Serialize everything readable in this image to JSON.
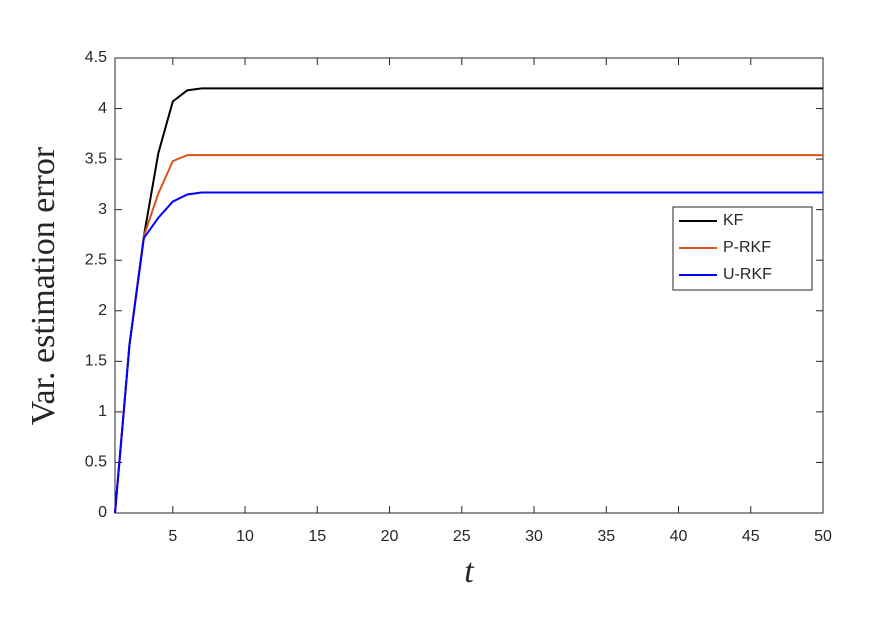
{
  "chart_data": {
    "type": "line",
    "xlabel": "t",
    "ylabel": "Var. estimation error",
    "x": [
      1,
      2,
      3,
      4,
      5,
      6,
      7,
      8,
      9,
      10,
      11,
      12,
      13,
      14,
      15,
      16,
      17,
      18,
      19,
      20,
      21,
      22,
      23,
      24,
      25,
      26,
      27,
      28,
      29,
      30,
      31,
      32,
      33,
      34,
      35,
      36,
      37,
      38,
      39,
      40,
      41,
      42,
      43,
      44,
      45,
      46,
      47,
      48,
      49,
      50
    ],
    "series": [
      {
        "name": "KF",
        "color": "#000000",
        "values": [
          0,
          1.66,
          2.74,
          3.56,
          4.07,
          4.18,
          4.2,
          4.2,
          4.2,
          4.2,
          4.2,
          4.2,
          4.2,
          4.2,
          4.2,
          4.2,
          4.2,
          4.2,
          4.2,
          4.2,
          4.2,
          4.2,
          4.2,
          4.2,
          4.2,
          4.2,
          4.2,
          4.2,
          4.2,
          4.2,
          4.2,
          4.2,
          4.2,
          4.2,
          4.2,
          4.2,
          4.2,
          4.2,
          4.2,
          4.2,
          4.2,
          4.2,
          4.2,
          4.2,
          4.2,
          4.2,
          4.2,
          4.2,
          4.2,
          4.2
        ]
      },
      {
        "name": "P-RKF",
        "color": "#d95319",
        "values": [
          0,
          1.66,
          2.74,
          3.16,
          3.48,
          3.54,
          3.54,
          3.54,
          3.54,
          3.54,
          3.54,
          3.54,
          3.54,
          3.54,
          3.54,
          3.54,
          3.54,
          3.54,
          3.54,
          3.54,
          3.54,
          3.54,
          3.54,
          3.54,
          3.54,
          3.54,
          3.54,
          3.54,
          3.54,
          3.54,
          3.54,
          3.54,
          3.54,
          3.54,
          3.54,
          3.54,
          3.54,
          3.54,
          3.54,
          3.54,
          3.54,
          3.54,
          3.54,
          3.54,
          3.54,
          3.54,
          3.54,
          3.54,
          3.54,
          3.54
        ]
      },
      {
        "name": "U-RKF",
        "color": "#0000ff",
        "values": [
          0,
          1.66,
          2.72,
          2.92,
          3.08,
          3.15,
          3.17,
          3.17,
          3.17,
          3.17,
          3.17,
          3.17,
          3.17,
          3.17,
          3.17,
          3.17,
          3.17,
          3.17,
          3.17,
          3.17,
          3.17,
          3.17,
          3.17,
          3.17,
          3.17,
          3.17,
          3.17,
          3.17,
          3.17,
          3.17,
          3.17,
          3.17,
          3.17,
          3.17,
          3.17,
          3.17,
          3.17,
          3.17,
          3.17,
          3.17,
          3.17,
          3.17,
          3.17,
          3.17,
          3.17,
          3.17,
          3.17,
          3.17,
          3.17,
          3.17
        ]
      }
    ],
    "xlim": [
      1,
      50
    ],
    "xticks": [
      5,
      10,
      15,
      20,
      25,
      30,
      35,
      40,
      45,
      50
    ],
    "ylim": [
      0,
      4.5
    ],
    "yticks": [
      0,
      0.5,
      1,
      1.5,
      2,
      2.5,
      3,
      3.5,
      4,
      4.5
    ],
    "legend": "right"
  }
}
